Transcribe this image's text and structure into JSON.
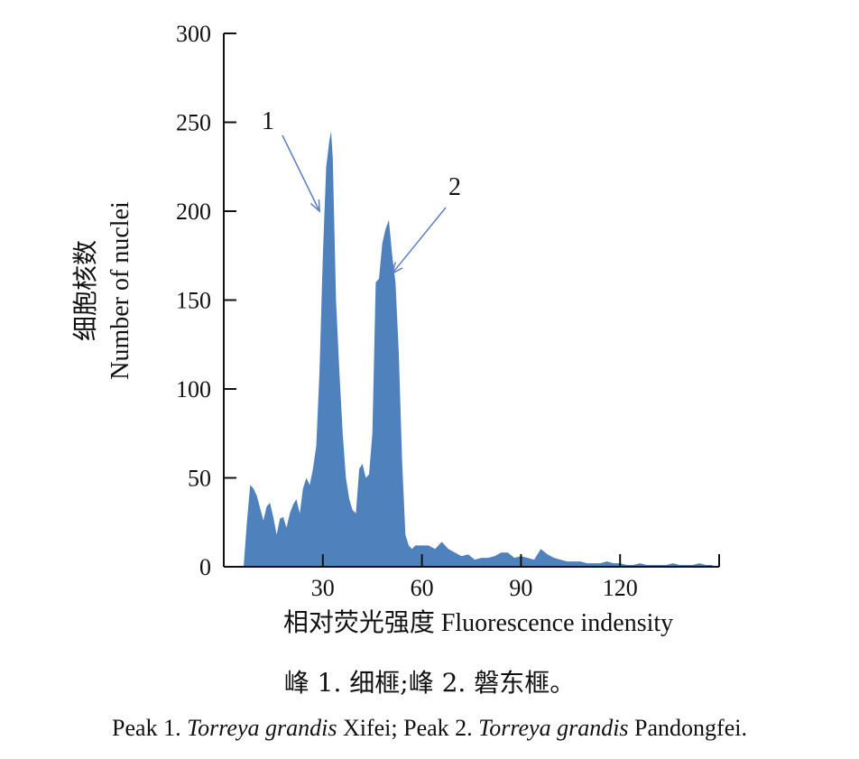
{
  "chart_data": {
    "type": "area",
    "ylabel_cn": "细胞核数",
    "ylabel_en": "Number of nuclei",
    "xlabel": "相对荧光强度 Fluorescence indensity",
    "xlim": [
      0,
      150
    ],
    "ylim": [
      0,
      300
    ],
    "x_ticks": [
      "30",
      "60",
      "90",
      "120"
    ],
    "y_ticks": [
      "0",
      "50",
      "100",
      "150",
      "200",
      "250",
      "300"
    ],
    "color": "#4f81bd",
    "annotations": [
      {
        "label": "1",
        "target_x": 29,
        "target_y": 200
      },
      {
        "label": "2",
        "target_x": 51,
        "target_y": 165
      }
    ],
    "x": [
      6,
      7,
      8,
      9,
      10,
      11,
      12,
      13,
      14,
      15,
      16,
      17,
      18,
      19,
      20,
      21,
      22,
      23,
      24,
      25,
      26,
      27,
      28,
      29,
      30,
      31,
      32,
      32.5,
      33,
      34,
      35,
      36,
      37,
      38,
      39,
      40,
      41,
      42,
      43,
      44,
      45,
      46,
      47,
      48,
      49,
      50,
      51,
      52,
      53,
      54,
      55,
      56,
      57,
      58,
      60,
      62,
      64,
      66,
      68,
      70,
      72,
      74,
      76,
      78,
      80,
      82,
      84,
      86,
      88,
      90,
      92,
      94,
      96,
      98,
      100,
      102,
      104,
      106,
      108,
      110,
      112,
      114,
      116,
      118,
      120,
      122,
      124,
      126,
      128,
      130,
      132,
      134,
      136,
      138,
      140,
      142,
      144,
      146,
      148
    ],
    "y": [
      0,
      25,
      46,
      44,
      40,
      33,
      26,
      34,
      36,
      28,
      18,
      27,
      28,
      22,
      30,
      35,
      38,
      30,
      44,
      50,
      46,
      55,
      68,
      110,
      175,
      225,
      240,
      245,
      230,
      150,
      110,
      75,
      50,
      38,
      32,
      30,
      55,
      58,
      50,
      52,
      75,
      160,
      162,
      182,
      190,
      195,
      175,
      160,
      120,
      60,
      18,
      12,
      10,
      12,
      12,
      12,
      10,
      14,
      10,
      8,
      6,
      7,
      4,
      5,
      5,
      6,
      8,
      8,
      5,
      6,
      5,
      4,
      10,
      7,
      5,
      4,
      3,
      3,
      3,
      2,
      2,
      2,
      3,
      2,
      2,
      1,
      1,
      2,
      1,
      1,
      1,
      1,
      2,
      1,
      1,
      1,
      2,
      1,
      1
    ]
  },
  "caption": {
    "cn": "峰 1. 细榧;峰 2. 磐东榧。",
    "en_parts": [
      "Peak 1. ",
      "Torreya grandis",
      " Xifei; Peak 2. ",
      "Torreya grandis",
      " Pandongfei."
    ]
  }
}
